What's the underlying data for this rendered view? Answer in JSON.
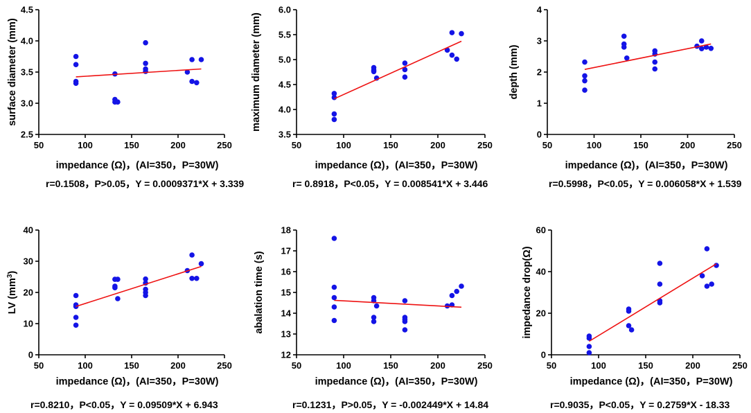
{
  "chart_data": [
    {
      "type": "scatter",
      "ylabel": "surface diameter (mm)",
      "xlabel": "impedance (Ω)，(AI=350，P=30W)",
      "xlim": [
        50,
        250
      ],
      "ylim": [
        2.5,
        4.5
      ],
      "xticks": [
        50,
        100,
        150,
        200,
        250
      ],
      "xtick_labels": [
        "50",
        "100",
        "150",
        "200",
        "250"
      ],
      "yticks": [
        2.5,
        3.0,
        3.5,
        4.0,
        4.5
      ],
      "ytick_labels": [
        "2.5",
        "3.0",
        "3.5",
        "4.0",
        "4.5"
      ],
      "points": {
        "x": [
          90,
          90,
          90,
          90,
          132,
          132,
          132,
          135,
          165,
          165,
          165,
          165,
          210,
          215,
          215,
          220,
          225
        ],
        "y": [
          3.75,
          3.62,
          3.35,
          3.32,
          3.47,
          3.06,
          3.02,
          3.02,
          3.97,
          3.64,
          3.55,
          3.51,
          3.5,
          3.7,
          3.35,
          3.33,
          3.7
        ]
      },
      "fit": {
        "slope": 0.0009371,
        "intercept": 3.339,
        "x_range": [
          90,
          225
        ]
      },
      "stat_text": "r=0.1508，P>0.05，Y = 0.0009371*X + 3.339"
    },
    {
      "type": "scatter",
      "ylabel": "maximum diameter (mm)",
      "xlabel": "impedance (Ω)，(AI=350，P=30W)",
      "xlim": [
        50,
        250
      ],
      "ylim": [
        3.5,
        6.0
      ],
      "xticks": [
        50,
        100,
        150,
        200,
        250
      ],
      "xtick_labels": [
        "50",
        "100",
        "150",
        "200",
        "250"
      ],
      "yticks": [
        3.5,
        4.0,
        4.5,
        5.0,
        5.5,
        6.0
      ],
      "ytick_labels": [
        "3.5",
        "4.0",
        "4.5",
        "5.0",
        "5.5",
        "6.0"
      ],
      "points": {
        "x": [
          90,
          90,
          90,
          90,
          132,
          132,
          132,
          135,
          165,
          165,
          165,
          210,
          215,
          215,
          220,
          225
        ],
        "y": [
          4.32,
          4.24,
          3.91,
          3.8,
          4.84,
          4.79,
          4.76,
          4.63,
          4.93,
          4.8,
          4.65,
          5.19,
          5.54,
          5.09,
          5.01,
          5.52
        ]
      },
      "fit": {
        "slope": 0.008541,
        "intercept": 3.446,
        "x_range": [
          90,
          225
        ]
      },
      "stat_text": "r= 0.8918，P<0.05，Y = 0.008541*X + 3.446"
    },
    {
      "type": "scatter",
      "ylabel": "depth (mm)",
      "xlabel": "impedance (Ω)，(AI=350，P=30W)",
      "xlim": [
        50,
        250
      ],
      "ylim": [
        0,
        4
      ],
      "xticks": [
        50,
        100,
        150,
        200,
        250
      ],
      "xtick_labels": [
        "50",
        "100",
        "150",
        "200",
        "250"
      ],
      "yticks": [
        0,
        1,
        2,
        3,
        4
      ],
      "ytick_labels": [
        "0",
        "1",
        "2",
        "3",
        "4"
      ],
      "points": {
        "x": [
          90,
          90,
          90,
          90,
          132,
          132,
          132,
          135,
          165,
          165,
          165,
          165,
          210,
          215,
          215,
          220,
          225
        ],
        "y": [
          2.32,
          1.88,
          1.72,
          1.42,
          3.15,
          2.9,
          2.8,
          2.45,
          2.68,
          2.58,
          2.32,
          2.1,
          2.83,
          3.0,
          2.75,
          2.8,
          2.76
        ]
      },
      "fit": {
        "slope": 0.006058,
        "intercept": 1.539,
        "x_range": [
          90,
          225
        ]
      },
      "stat_text": "r=0.5998，P<0.05，Y = 0.006058*X + 1.539"
    },
    {
      "type": "scatter",
      "ylabel": "LV (mm³)",
      "ylabel_main": "LV (mm",
      "ylabel_sup": "3",
      "ylabel_close": ")",
      "xlabel": "impedance (Ω)，(AI=350，P=30W)",
      "xlim": [
        50,
        250
      ],
      "ylim": [
        0,
        40
      ],
      "xticks": [
        50,
        100,
        150,
        200,
        250
      ],
      "xtick_labels": [
        "50",
        "100",
        "150",
        "200",
        "250"
      ],
      "yticks": [
        0,
        10,
        20,
        30,
        40
      ],
      "ytick_labels": [
        "0",
        "10",
        "20",
        "30",
        "40"
      ],
      "points": {
        "x": [
          90,
          90,
          90,
          90,
          90,
          132,
          132,
          132,
          135,
          135,
          165,
          165,
          165,
          165,
          165,
          210,
          215,
          215,
          220,
          225
        ],
        "y": [
          19.0,
          16.0,
          15.5,
          12.0,
          9.5,
          24.2,
          22.0,
          21.5,
          24.2,
          18.0,
          24.3,
          23.0,
          21.0,
          20.0,
          19.0,
          27.0,
          32.0,
          24.5,
          24.5,
          29.2
        ]
      },
      "fit": {
        "slope": 0.09509,
        "intercept": 6.943,
        "x_range": [
          90,
          225
        ]
      },
      "stat_text": "r=0.8210，P<0.05，Y = 0.09509*X + 6.943"
    },
    {
      "type": "scatter",
      "ylabel": "abalation time (s)",
      "xlabel": "impedance (Ω)，(AI=350，P=30W)",
      "xlim": [
        50,
        250
      ],
      "ylim": [
        12,
        18
      ],
      "xticks": [
        50,
        100,
        150,
        200,
        250
      ],
      "xtick_labels": [
        "50",
        "100",
        "150",
        "200",
        "250"
      ],
      "yticks": [
        12,
        13,
        14,
        15,
        16,
        17,
        18
      ],
      "ytick_labels": [
        "12",
        "13",
        "14",
        "15",
        "16",
        "17",
        "18"
      ],
      "points": {
        "x": [
          90,
          90,
          90,
          90,
          90,
          132,
          132,
          132,
          132,
          135,
          165,
          165,
          165,
          165,
          165,
          210,
          215,
          215,
          220,
          225
        ],
        "y": [
          17.6,
          15.25,
          14.75,
          14.3,
          13.65,
          14.75,
          14.6,
          13.8,
          13.6,
          14.35,
          14.6,
          13.8,
          13.7,
          13.6,
          13.2,
          14.35,
          14.4,
          14.85,
          15.05,
          15.3
        ]
      },
      "fit": {
        "slope": -0.002449,
        "intercept": 14.84,
        "x_range": [
          90,
          225
        ]
      },
      "stat_text": "r=0.1231，P>0.05，Y = -0.002449*X + 14.84"
    },
    {
      "type": "scatter",
      "ylabel": "impedance drop(Ω)",
      "xlabel": "impedance (Ω)，(AI=350，P=30W)",
      "xlim": [
        50,
        250
      ],
      "ylim": [
        0,
        60
      ],
      "xticks": [
        50,
        100,
        150,
        200,
        250
      ],
      "xtick_labels": [
        "50",
        "100",
        "150",
        "200",
        "250"
      ],
      "yticks": [
        0,
        20,
        40,
        60
      ],
      "ytick_labels": [
        "0",
        "20",
        "40",
        "60"
      ],
      "points": {
        "x": [
          90,
          90,
          90,
          90,
          132,
          132,
          132,
          135,
          165,
          165,
          165,
          165,
          210,
          215,
          215,
          220,
          225
        ],
        "y": [
          9,
          8,
          4,
          1,
          22,
          21,
          14,
          12,
          44,
          34,
          26,
          25,
          38,
          51,
          33,
          34,
          43
        ]
      },
      "fit": {
        "slope": 0.2759,
        "intercept": -18.33,
        "x_range": [
          90,
          225
        ]
      },
      "stat_text": "r=0.9035，P<0.05，Y = 0.2759*X - 18.33"
    }
  ],
  "colors": {
    "points": "#1414e6",
    "fit_line": "#ee1111",
    "axis": "#000000"
  }
}
